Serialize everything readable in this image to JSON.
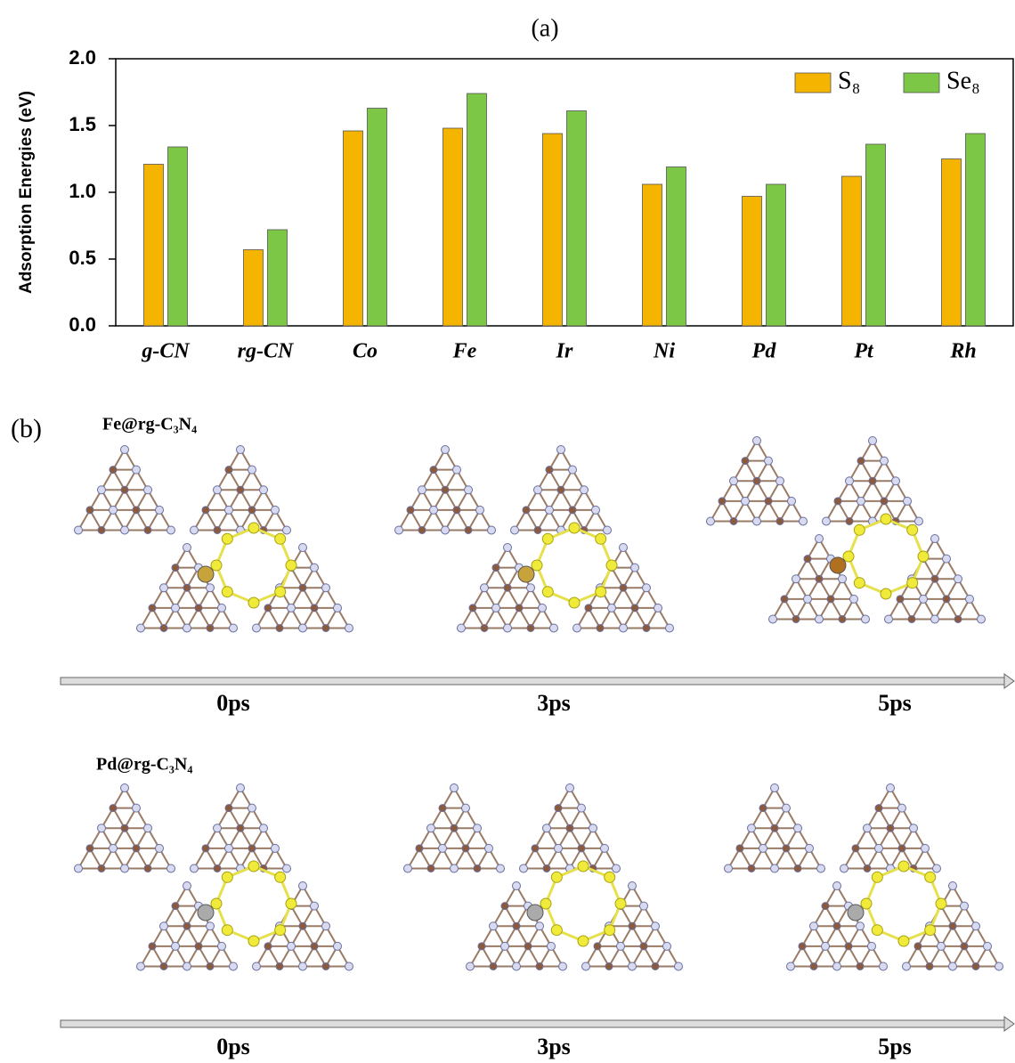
{
  "chart_data": {
    "type": "bar",
    "title": "(a)",
    "y_label": "Adsorption Energies (eV)",
    "categories": [
      "g-CN",
      "rg-CN",
      "Co",
      "Fe",
      "Ir",
      "Ni",
      "Pd",
      "Pt",
      "Rh"
    ],
    "series": [
      {
        "name": "S₈",
        "color": "#f5b400",
        "values": [
          1.21,
          0.57,
          1.46,
          1.48,
          1.44,
          1.06,
          0.97,
          1.12,
          1.25
        ]
      },
      {
        "name": "Se₈",
        "color": "#7cc846",
        "values": [
          1.34,
          0.72,
          1.63,
          1.74,
          1.61,
          1.19,
          1.06,
          1.36,
          1.44
        ]
      }
    ],
    "ylim": [
      0,
      2
    ],
    "yticks": [
      {
        "value": 0,
        "label": "0.0"
      },
      {
        "value": 0.5,
        "label": "0.5"
      },
      {
        "value": 1,
        "label": "1.0"
      },
      {
        "value": 1.5,
        "label": "1.5"
      },
      {
        "value": 2,
        "label": "2.0"
      }
    ],
    "legend": "upper right"
  },
  "panel_b": {
    "label": "(b)",
    "rows": [
      {
        "system": "Fe@rg-C₃N₄",
        "times": [
          "0ps",
          "3ps",
          "5ps"
        ]
      },
      {
        "system": "Pd@rg-C₃N₄",
        "times": [
          "0ps",
          "3ps",
          "5ps"
        ]
      }
    ]
  }
}
